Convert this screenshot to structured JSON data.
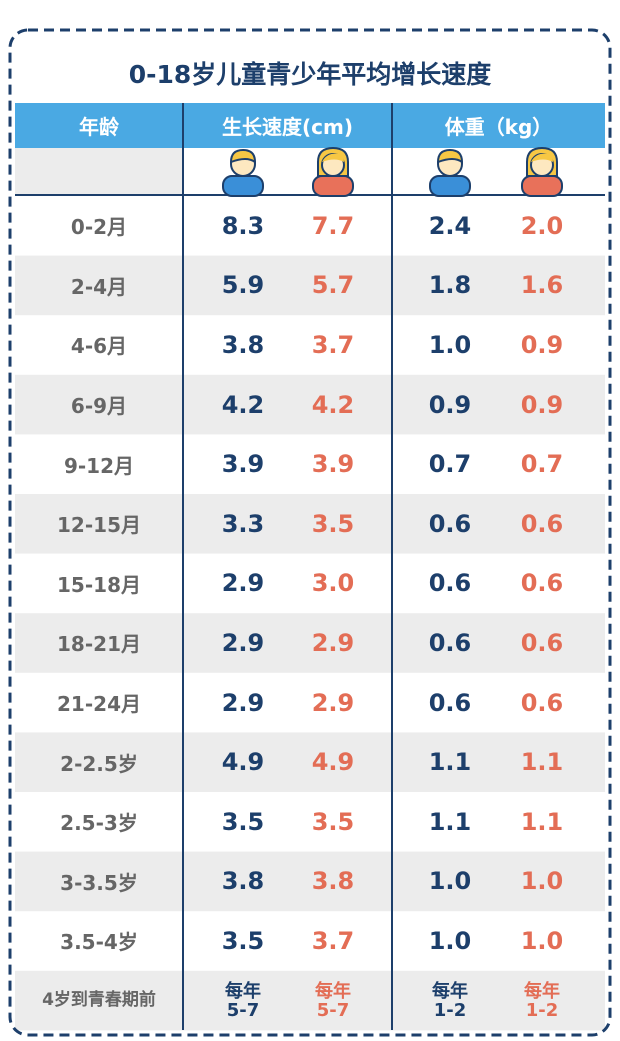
{
  "title": "0-18岁儿童青少年平均增长速度",
  "header": [
    "年龄",
    "生长速度(cm)",
    "体重（kg）"
  ],
  "rows": [
    [
      "0-2月",
      "8.3",
      "7.7",
      "2.4",
      "2.0"
    ],
    [
      "2-4月",
      "5.9",
      "5.7",
      "1.8",
      "1.6"
    ],
    [
      "4-6月",
      "3.8",
      "3.7",
      "1.0",
      "0.9"
    ],
    [
      "6-9月",
      "4.2",
      "4.2",
      "0.9",
      "0.9"
    ],
    [
      "9-12月",
      "3.9",
      "3.9",
      "0.7",
      "0.7"
    ],
    [
      "12-15月",
      "3.3",
      "3.5",
      "0.6",
      "0.6"
    ],
    [
      "15-18月",
      "2.9",
      "3.0",
      "0.6",
      "0.6"
    ],
    [
      "18-21月",
      "2.9",
      "2.9",
      "0.6",
      "0.6"
    ],
    [
      "21-24月",
      "2.9",
      "2.9",
      "0.6",
      "0.6"
    ],
    [
      "2-2.5岁",
      "4.9",
      "4.9",
      "1.1",
      "1.1"
    ],
    [
      "2.5-3岁",
      "3.5",
      "3.5",
      "1.1",
      "1.1"
    ],
    [
      "3-3.5岁",
      "3.8",
      "3.8",
      "1.0",
      "1.0"
    ],
    [
      "3.5-4岁",
      "3.5",
      "3.7",
      "1.0",
      "1.0"
    ],
    [
      "4岁到青春期前",
      "每年\n5-7",
      "每年\n5-7",
      "每年\n1-2",
      "每年\n1-2"
    ]
  ]
}
